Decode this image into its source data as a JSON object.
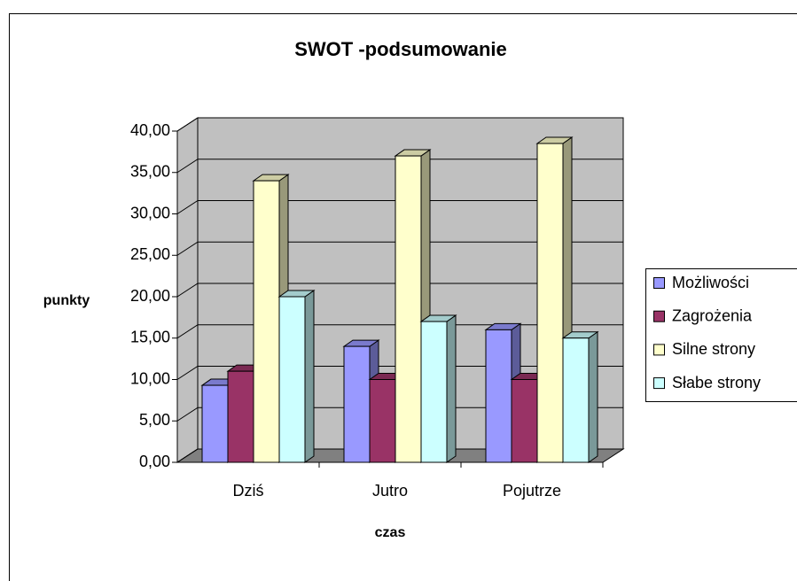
{
  "chart_data": {
    "type": "bar3d",
    "title": "SWOT -podsumowanie",
    "xlabel": "czas",
    "ylabel": "punkty",
    "categories": [
      "Dziś",
      "Jutro",
      "Pojutrze"
    ],
    "series": [
      {
        "name": "Możliwości",
        "color": "#9999ff",
        "values": [
          9.3,
          14,
          16
        ]
      },
      {
        "name": "Zagrożenia",
        "color": "#993366",
        "values": [
          11,
          10,
          10
        ]
      },
      {
        "name": "Silne strony",
        "color": "#ffffcc",
        "values": [
          34,
          37,
          38.5
        ]
      },
      {
        "name": "Słabe strony",
        "color": "#ccffff",
        "values": [
          20,
          17,
          15
        ]
      }
    ],
    "ylim": [
      0,
      40
    ],
    "yticks": [
      {
        "value": 0,
        "label": "0,00"
      },
      {
        "value": 5,
        "label": "5,00"
      },
      {
        "value": 10,
        "label": "10,00"
      },
      {
        "value": 15,
        "label": "15,00"
      },
      {
        "value": 20,
        "label": "20,00"
      },
      {
        "value": 25,
        "label": "25,00"
      },
      {
        "value": 30,
        "label": "30,00"
      },
      {
        "value": 35,
        "label": "35,00"
      },
      {
        "value": 40,
        "label": "40,00"
      }
    ],
    "grid": true,
    "legend": "right"
  }
}
